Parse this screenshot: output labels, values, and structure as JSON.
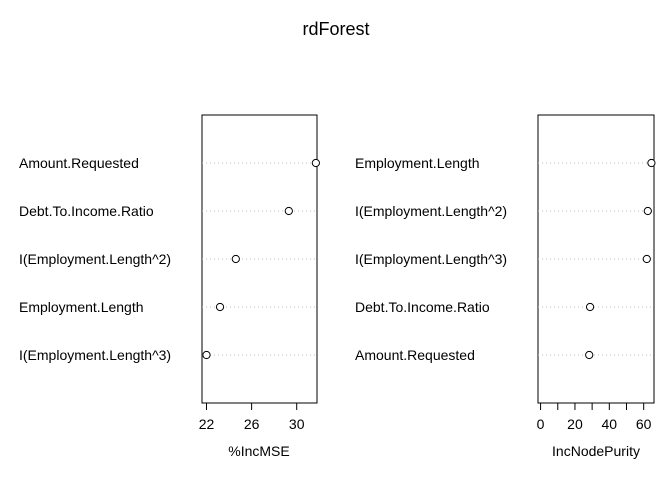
{
  "chart_data": {
    "title": "rdForest",
    "type": "dot",
    "panels": [
      {
        "xlabel": "%IncMSE",
        "xticks": [
          22,
          26,
          30
        ],
        "xlim": [
          21.6,
          31.8
        ],
        "categories": [
          "Amount.Requested",
          "Debt.To.Income.Ratio",
          "I(Employment.Length^2)",
          "Employment.Length",
          "I(Employment.Length^3)"
        ],
        "values": [
          31.7,
          29.3,
          24.6,
          23.2,
          22.0
        ]
      },
      {
        "xlabel": "IncNodePurity",
        "xticks": [
          0,
          20,
          40,
          60
        ],
        "minor_xticks": [
          10,
          30,
          50
        ],
        "xlim": [
          -1.5,
          66
        ],
        "categories": [
          "Employment.Length",
          "I(Employment.Length^2)",
          "I(Employment.Length^3)",
          "Debt.To.Income.Ratio",
          "Amount.Requested"
        ],
        "values": [
          64.5,
          62.4,
          61.8,
          28.8,
          28.3
        ]
      }
    ]
  }
}
